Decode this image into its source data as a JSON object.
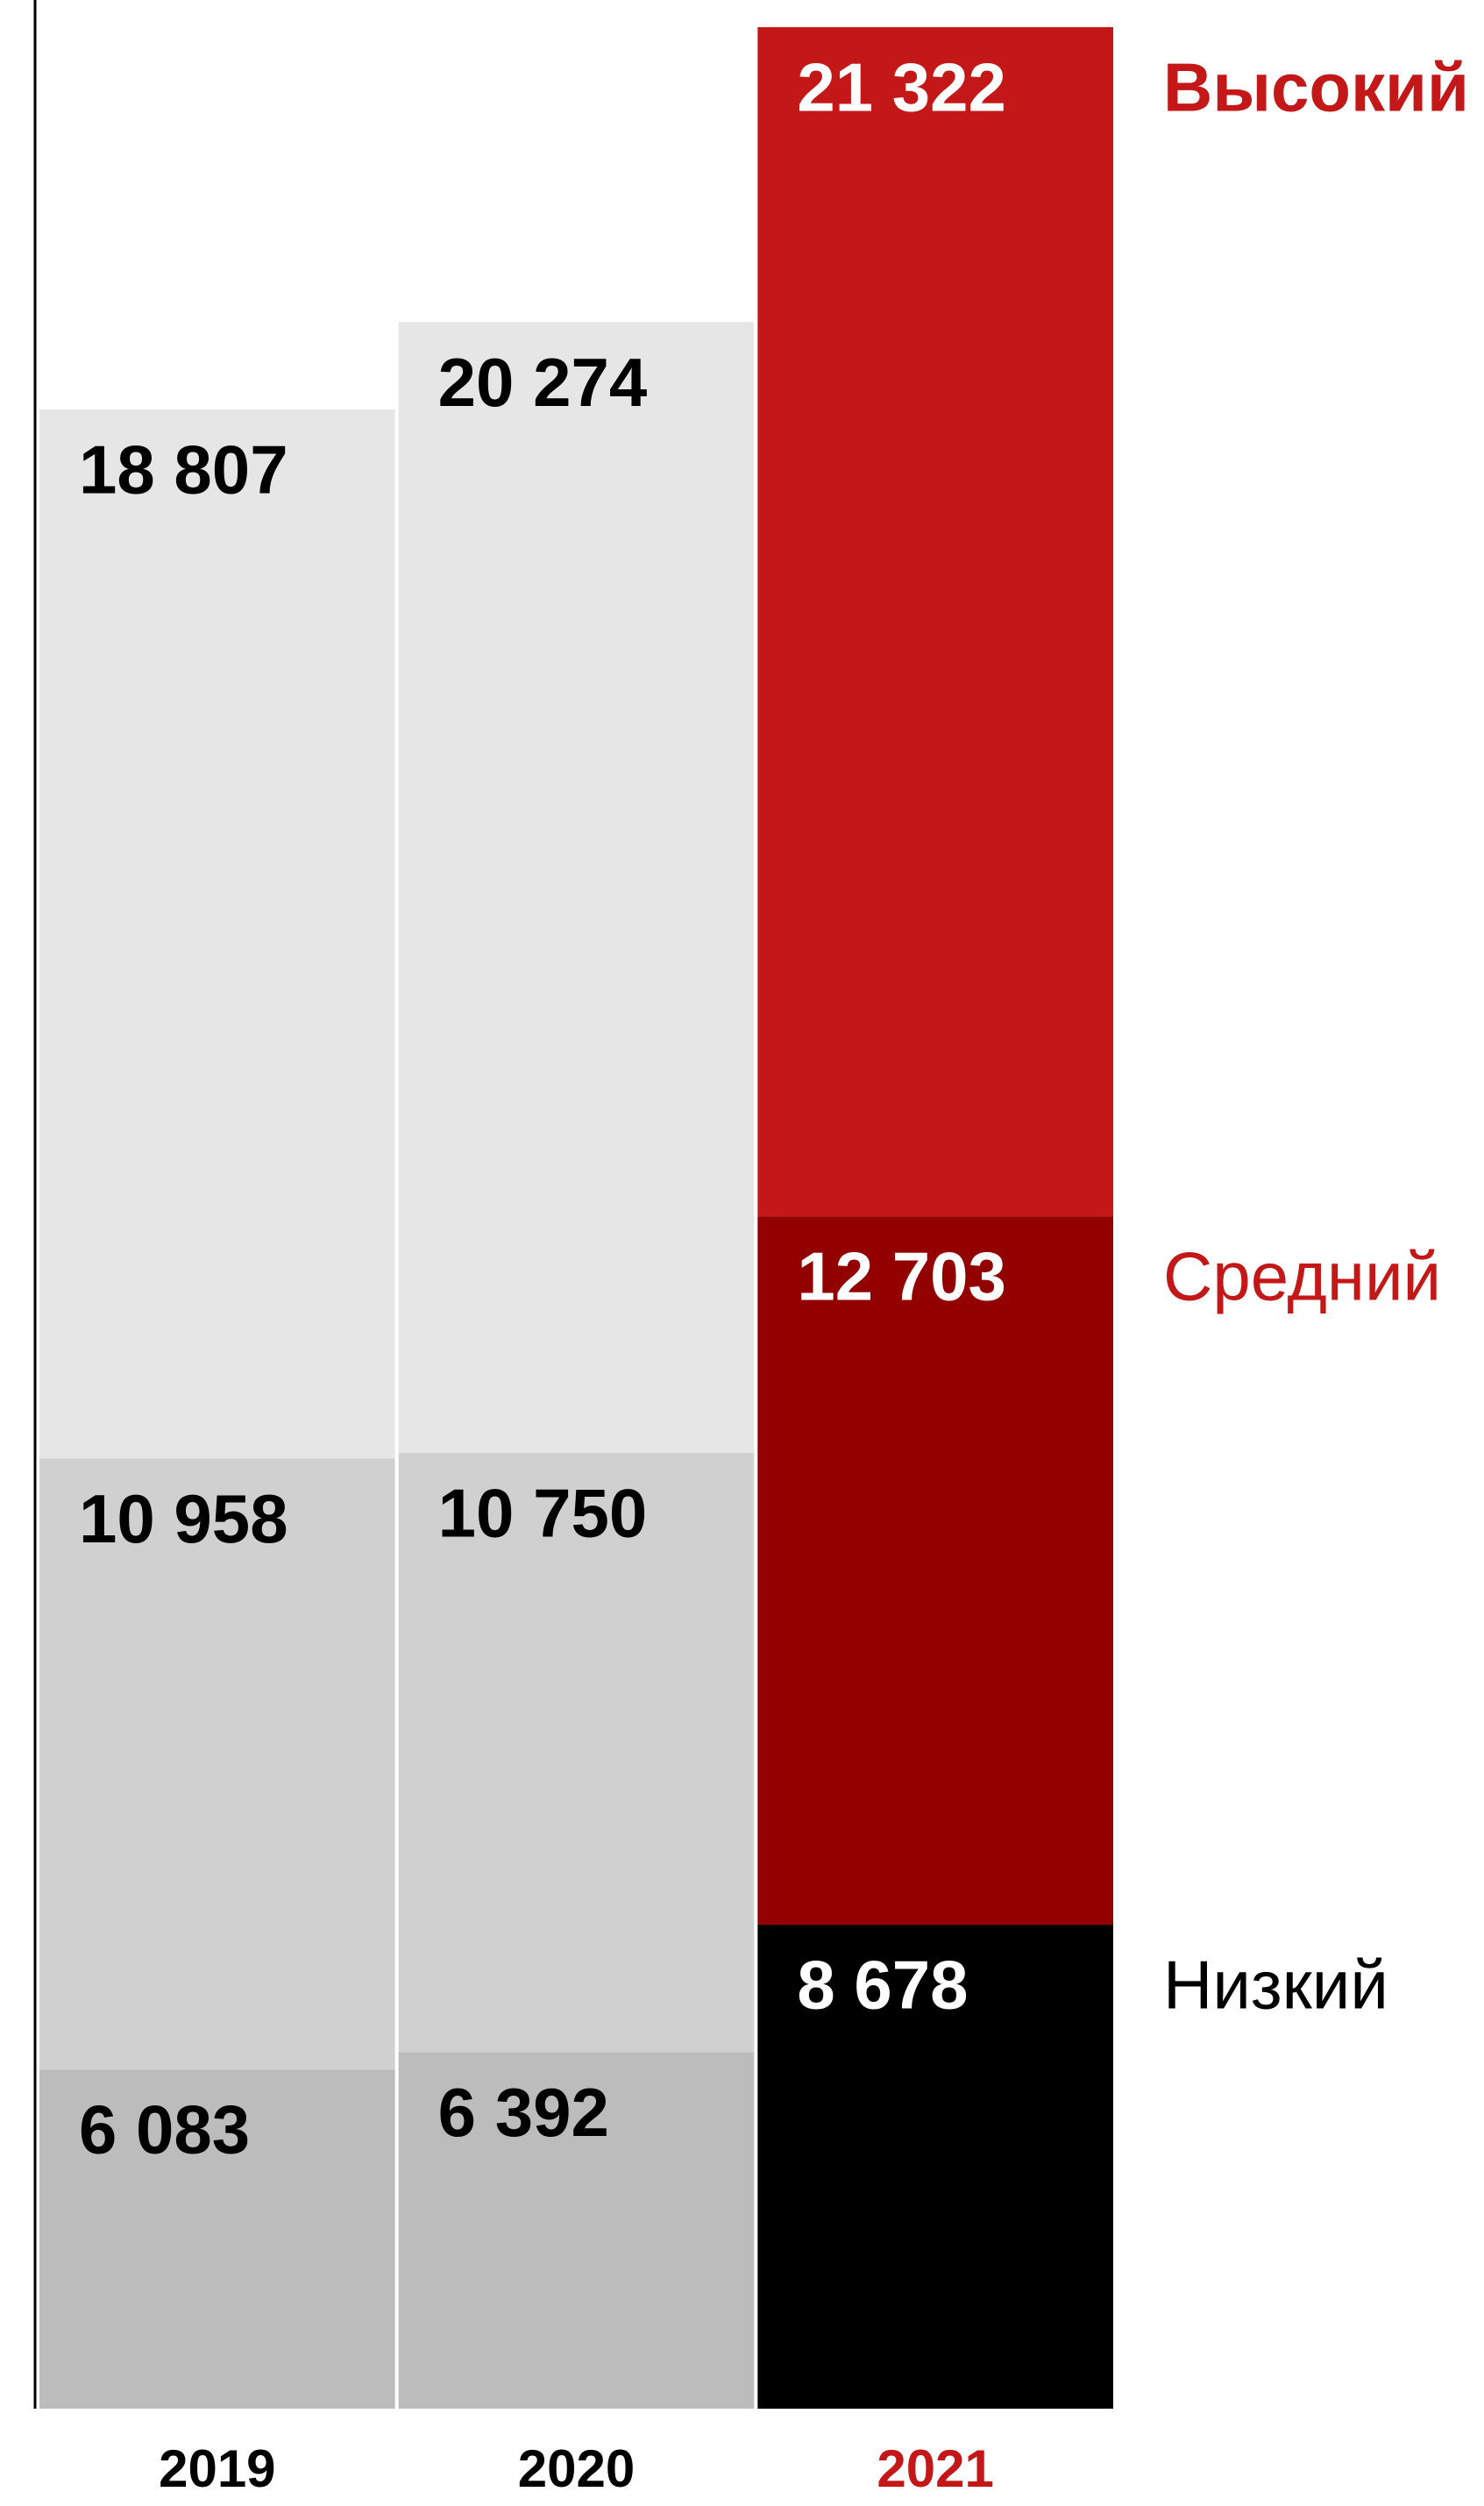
{
  "chart_data": {
    "type": "stacked_bar",
    "categories": [
      "2019",
      "2020",
      "2021"
    ],
    "category_colors": [
      "#000000",
      "#000000",
      "#c41718"
    ],
    "series": [
      {
        "name": "Низкий",
        "label_color": "#000000",
        "colors": [
          "#bcbcbc",
          "#bcbcbc",
          "#000000"
        ],
        "text_colors": [
          "#000000",
          "#000000",
          "#ffffff"
        ],
        "values": [
          6083,
          6392,
          8678
        ],
        "value_labels": [
          "6 083",
          "6 392",
          "8 678"
        ]
      },
      {
        "name": "Средний",
        "label_color": "#c41718",
        "colors": [
          "#d0d0d0",
          "#d0d0d0",
          "#930000"
        ],
        "text_colors": [
          "#000000",
          "#000000",
          "#ffffff"
        ],
        "values": [
          10958,
          10750,
          12703
        ],
        "value_labels": [
          "10 958",
          "10 750",
          "12 703"
        ]
      },
      {
        "name": "Высокий",
        "label_color": "#c41718",
        "colors": [
          "#e6e6e6",
          "#e6e6e6",
          "#c41718"
        ],
        "text_colors": [
          "#000000",
          "#000000",
          "#ffffff"
        ],
        "values": [
          18807,
          20274,
          21322
        ],
        "value_labels": [
          "18 807",
          "20 274",
          "21 322"
        ]
      }
    ]
  }
}
